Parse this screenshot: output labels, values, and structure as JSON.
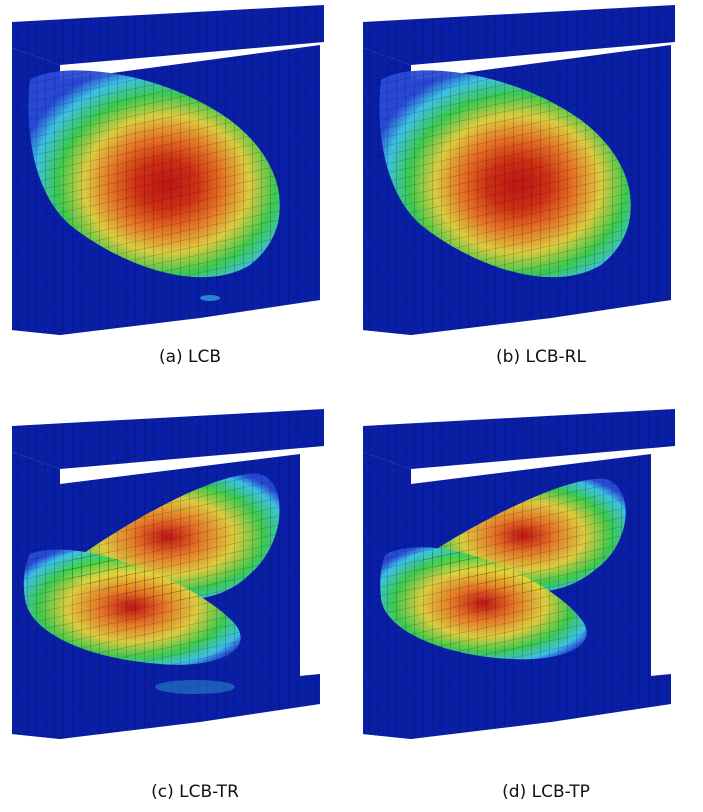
{
  "captions": {
    "a": "(a) LCB",
    "b": "(b) LCB-RL",
    "c": "(c) LCB-TR",
    "d": "(d) LCB-TP"
  },
  "colors": {
    "base": "#0a1fa8",
    "dark": "#061470",
    "cyan": "#3fc8e8",
    "green": "#3fd24a",
    "yellow": "#e7d43a",
    "orange": "#f07a20",
    "red": "#c8140c"
  }
}
